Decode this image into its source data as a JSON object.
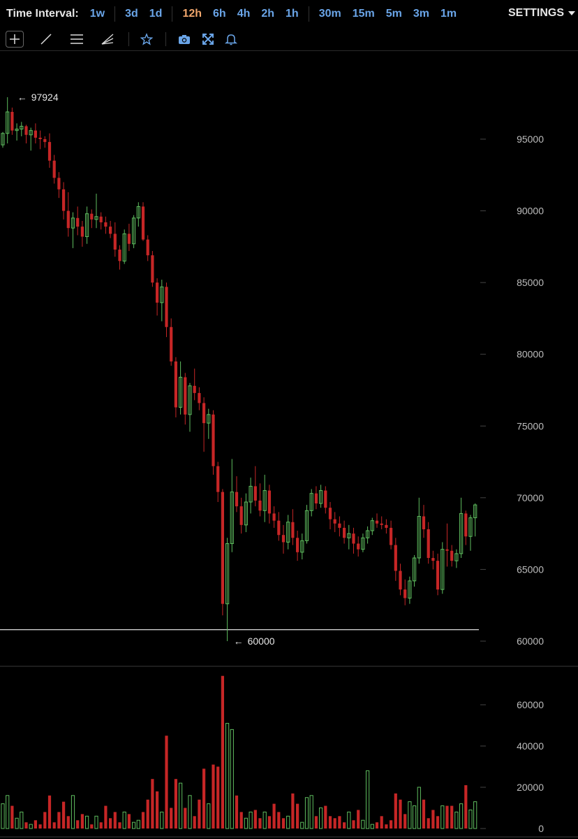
{
  "toolbar": {
    "title": "Time Interval:",
    "intervals": [
      {
        "label": "1w",
        "group": 0
      },
      {
        "label": "3d",
        "group": 1
      },
      {
        "label": "1d",
        "group": 1
      },
      {
        "label": "12h",
        "group": 2,
        "active": true
      },
      {
        "label": "6h",
        "group": 2
      },
      {
        "label": "4h",
        "group": 2
      },
      {
        "label": "2h",
        "group": 2
      },
      {
        "label": "1h",
        "group": 2
      },
      {
        "label": "30m",
        "group": 3
      },
      {
        "label": "15m",
        "group": 3
      },
      {
        "label": "5m",
        "group": 3
      },
      {
        "label": "3m",
        "group": 3
      },
      {
        "label": "1m",
        "group": 3
      }
    ],
    "settings_label": "SETTINGS",
    "tools": [
      "crosshair-icon",
      "trend-line-icon",
      "horizontal-lines-icon",
      "fan-lines-icon",
      "star-icon",
      "camera-icon",
      "fullscreen-icon",
      "alert-bell-icon"
    ]
  },
  "colors": {
    "up": "#5fbe5f",
    "down": "#c62626",
    "accent": "#6aa5e8",
    "active": "#f0a66c"
  },
  "chart_data": {
    "type": "candlestick",
    "price_axis": {
      "ylim": [
        59000,
        99200
      ],
      "ticks": [
        95000,
        90000,
        85000,
        80000,
        75000,
        70000,
        65000,
        60000
      ]
    },
    "volume_axis": {
      "ylim": [
        0,
        74000
      ],
      "ticks": [
        60000,
        40000,
        20000,
        0
      ]
    },
    "markers": {
      "high_label": "97924",
      "low_label": "60000",
      "high_value": 97924,
      "low_value": 60000
    },
    "horizontal_line": 60800,
    "candles": [
      [
        94600,
        95500,
        94400,
        95400
      ],
      [
        95400,
        97924,
        94700,
        96900
      ],
      [
        96900,
        97200,
        95300,
        95600
      ],
      [
        95600,
        96100,
        94900,
        95700
      ],
      [
        95700,
        96200,
        95200,
        95900
      ],
      [
        95900,
        96000,
        94700,
        95300
      ],
      [
        95300,
        95800,
        94200,
        95600
      ],
      [
        95600,
        96100,
        94700,
        95100
      ],
      [
        95100,
        95600,
        94300,
        95000
      ],
      [
        95000,
        95200,
        94400,
        94800
      ],
      [
        94800,
        95400,
        93000,
        93500
      ],
      [
        93500,
        93900,
        91900,
        92300
      ],
      [
        92300,
        92700,
        90900,
        91500
      ],
      [
        91500,
        92000,
        89400,
        90000
      ],
      [
        90000,
        91300,
        88200,
        88800
      ],
      [
        88800,
        89900,
        87400,
        89500
      ],
      [
        89500,
        90300,
        88300,
        88900
      ],
      [
        88900,
        89300,
        87500,
        88200
      ],
      [
        88200,
        90300,
        87700,
        89800
      ],
      [
        89800,
        90100,
        88800,
        89400
      ],
      [
        89400,
        91200,
        88800,
        89600
      ],
      [
        89600,
        89900,
        88700,
        89200
      ],
      [
        89200,
        89600,
        88400,
        88900
      ],
      [
        88900,
        89300,
        88100,
        88400
      ],
      [
        88400,
        89200,
        86800,
        87300
      ],
      [
        87300,
        87600,
        85900,
        86500
      ],
      [
        86500,
        88700,
        86300,
        88400
      ],
      [
        88400,
        89100,
        87200,
        87700
      ],
      [
        87700,
        89700,
        87400,
        89500
      ],
      [
        89500,
        90600,
        88900,
        90300
      ],
      [
        90300,
        90600,
        87900,
        88000
      ],
      [
        88000,
        88300,
        86500,
        86900
      ],
      [
        86900,
        87200,
        84700,
        85000
      ],
      [
        85000,
        85300,
        82700,
        83600
      ],
      [
        83600,
        85200,
        82300,
        84700
      ],
      [
        84700,
        85000,
        81200,
        81900
      ],
      [
        81900,
        82500,
        79200,
        79500
      ],
      [
        79500,
        79800,
        75600,
        76300
      ],
      [
        76300,
        79500,
        75800,
        78400
      ],
      [
        78400,
        78700,
        75100,
        75800
      ],
      [
        75800,
        78000,
        74600,
        77800
      ],
      [
        77800,
        79000,
        76800,
        77300
      ],
      [
        77300,
        77700,
        76100,
        76600
      ],
      [
        76600,
        77000,
        73200,
        75200
      ],
      [
        75200,
        76200,
        74100,
        75800
      ],
      [
        75800,
        76100,
        71600,
        72200
      ],
      [
        72200,
        72500,
        69700,
        70400
      ],
      [
        70400,
        70600,
        61800,
        62600
      ],
      [
        62600,
        67200,
        60000,
        66800
      ],
      [
        66800,
        72700,
        66200,
        70400
      ],
      [
        70400,
        71500,
        69000,
        69400
      ],
      [
        69400,
        70000,
        67500,
        68100
      ],
      [
        68100,
        70300,
        67600,
        69700
      ],
      [
        69700,
        71400,
        68900,
        70800
      ],
      [
        70800,
        72200,
        69400,
        69800
      ],
      [
        69800,
        71000,
        68700,
        69100
      ],
      [
        69100,
        71600,
        68300,
        70500
      ],
      [
        70500,
        70900,
        68200,
        68900
      ],
      [
        68900,
        69400,
        67900,
        68400
      ],
      [
        68400,
        69000,
        67000,
        67400
      ],
      [
        67400,
        68100,
        66100,
        66900
      ],
      [
        66900,
        68800,
        66400,
        68300
      ],
      [
        68300,
        69200,
        66700,
        67200
      ],
      [
        67200,
        67700,
        65600,
        66200
      ],
      [
        66200,
        67500,
        65700,
        67000
      ],
      [
        67000,
        69500,
        66800,
        69100
      ],
      [
        69100,
        70600,
        68700,
        70300
      ],
      [
        70300,
        70800,
        69200,
        69600
      ],
      [
        69600,
        70900,
        69300,
        70500
      ],
      [
        70500,
        70800,
        68900,
        69300
      ],
      [
        69300,
        69700,
        67800,
        68500
      ],
      [
        68500,
        69000,
        67600,
        68200
      ],
      [
        68200,
        68700,
        67300,
        67900
      ],
      [
        67900,
        68400,
        66800,
        67200
      ],
      [
        67200,
        68100,
        66400,
        67500
      ],
      [
        67500,
        67900,
        66100,
        66800
      ],
      [
        66800,
        67300,
        65900,
        66400
      ],
      [
        66400,
        67500,
        66200,
        67200
      ],
      [
        67200,
        68000,
        66800,
        67700
      ],
      [
        67700,
        68600,
        67400,
        68400
      ],
      [
        68400,
        68900,
        67900,
        68200
      ],
      [
        68200,
        68700,
        67800,
        68100
      ],
      [
        68100,
        68500,
        67500,
        67900
      ],
      [
        67900,
        68400,
        66400,
        66700
      ],
      [
        66700,
        67200,
        64200,
        64900
      ],
      [
        64900,
        65400,
        63200,
        63600
      ],
      [
        63600,
        64300,
        62500,
        63000
      ],
      [
        63000,
        64500,
        62600,
        64200
      ],
      [
        64200,
        66000,
        63800,
        65800
      ],
      [
        65800,
        70000,
        65400,
        68700
      ],
      [
        68700,
        69500,
        67200,
        67800
      ],
      [
        67800,
        68300,
        65400,
        65800
      ],
      [
        65800,
        66300,
        65000,
        65600
      ],
      [
        65600,
        66100,
        63200,
        63600
      ],
      [
        63600,
        66900,
        63300,
        66400
      ],
      [
        66400,
        68200,
        65200,
        66300
      ],
      [
        66300,
        66700,
        65200,
        65600
      ],
      [
        65600,
        66400,
        65100,
        66100
      ],
      [
        66100,
        70000,
        65800,
        68900
      ],
      [
        68900,
        69100,
        66700,
        67300
      ],
      [
        67300,
        68800,
        66300,
        68600
      ],
      [
        68600,
        69600,
        67300,
        69500
      ]
    ],
    "volumes": [
      12000,
      16000,
      11000,
      5000,
      8000,
      3000,
      2000,
      4000,
      2000,
      8000,
      16000,
      3000,
      8000,
      13000,
      6000,
      16000,
      4000,
      7000,
      6000,
      2000,
      6000,
      3000,
      11000,
      5000,
      8000,
      3000,
      8000,
      7000,
      3000,
      4000,
      8000,
      14000,
      24000,
      18000,
      8000,
      45000,
      10000,
      24000,
      22000,
      10000,
      16000,
      6000,
      14000,
      29000,
      12000,
      31000,
      30000,
      74000,
      51000,
      48000,
      16000,
      8000,
      5000,
      8000,
      9000,
      5000,
      8000,
      6000,
      12000,
      8000,
      5000,
      6000,
      17000,
      12000,
      3000,
      15000,
      16000,
      6000,
      10000,
      11000,
      6000,
      5000,
      6000,
      3000,
      8000,
      4000,
      9000,
      4000,
      28000,
      2000,
      3000,
      6000,
      2000,
      4000,
      17000,
      14000,
      7000,
      13000,
      11000,
      20000,
      14000,
      5000,
      9000,
      6000,
      11000,
      11000,
      11000,
      8000,
      12000,
      21000,
      9000,
      13000
    ]
  }
}
